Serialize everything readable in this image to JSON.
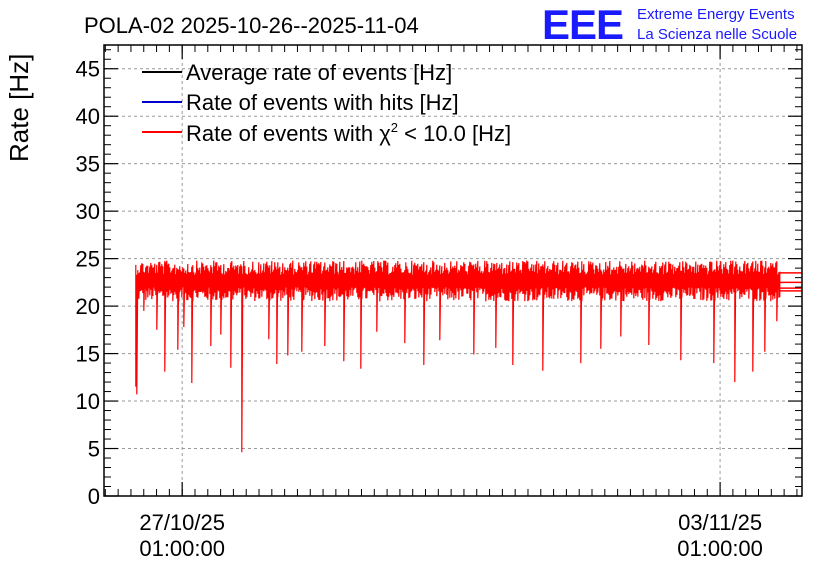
{
  "header": {
    "title": "POLA-02 2025-10-26--2025-11-04",
    "logo_text": "EEE",
    "logo_line1": "Extreme Energy Events",
    "logo_line2": "La Scienza nelle Scuole"
  },
  "chart_data": {
    "type": "line",
    "title": "POLA-02 2025-10-26--2025-11-04",
    "ylabel": "Rate [Hz]",
    "xlabel": "",
    "ylim": [
      0,
      47.5
    ],
    "y_ticks": [
      0,
      5,
      10,
      15,
      20,
      25,
      30,
      35,
      40,
      45
    ],
    "x_ticks": [
      {
        "date": "27/10/25",
        "time": "01:00:00"
      },
      {
        "date": "03/11/25",
        "time": "01:00:00"
      }
    ],
    "x_range_days": [
      "2025-10-26T00:35",
      "2025-11-04T02:35"
    ],
    "grid": true,
    "legend_position": "top-left",
    "legend": [
      {
        "label": "Average rate of events [Hz]",
        "color": "#000000"
      },
      {
        "label": "Rate of events with hits [Hz]",
        "color": "#0000cc"
      },
      {
        "label_prefix": "Rate of events with ",
        "label_symbol": "χ",
        "label_sup": "2",
        "label_suffix": " < 10.0 [Hz]",
        "color": "#ff0000"
      }
    ],
    "series": [
      {
        "name": "Average rate of events [Hz]",
        "color": "#000000",
        "typical": 22.8,
        "band": [
          20.5,
          24.8
        ]
      },
      {
        "name": "Rate of events with hits [Hz]",
        "color": "#0000cc",
        "typical": 22.8,
        "band": [
          20.5,
          24.8
        ]
      },
      {
        "name": "Rate of events with χ2 < 10.0 [Hz]",
        "color": "#ff0000",
        "typical": 22.8,
        "band": [
          20.5,
          24.8
        ],
        "start": "2025-10-26T10:30",
        "end": "2025-11-03T19:40",
        "dips": [
          {
            "t": "2025-10-26T10:35",
            "v": 11.5
          },
          {
            "t": "2025-10-26T10:50",
            "v": 10.7
          },
          {
            "t": "2025-10-26T13:00",
            "v": 19.5
          },
          {
            "t": "2025-10-26T17:10",
            "v": 17.5
          },
          {
            "t": "2025-10-26T19:40",
            "v": 13.1
          },
          {
            "t": "2025-10-26T23:40",
            "v": 15.4
          },
          {
            "t": "2025-10-27T01:40",
            "v": 17.8
          },
          {
            "t": "2025-10-27T04:10",
            "v": 11.9
          },
          {
            "t": "2025-10-27T10:00",
            "v": 15.8
          },
          {
            "t": "2025-10-27T13:00",
            "v": 17.0
          },
          {
            "t": "2025-10-27T16:10",
            "v": 13.5
          },
          {
            "t": "2025-10-27T19:50",
            "v": 4.6
          },
          {
            "t": "2025-10-28T04:10",
            "v": 16.5
          },
          {
            "t": "2025-10-28T06:40",
            "v": 13.9
          },
          {
            "t": "2025-10-28T10:00",
            "v": 14.8
          },
          {
            "t": "2025-10-28T14:30",
            "v": 15.2
          },
          {
            "t": "2025-10-28T21:40",
            "v": 15.8
          },
          {
            "t": "2025-10-29T03:40",
            "v": 14.2
          },
          {
            "t": "2025-10-29T09:00",
            "v": 13.4
          },
          {
            "t": "2025-10-29T14:00",
            "v": 17.3
          },
          {
            "t": "2025-10-29T22:30",
            "v": 16.1
          },
          {
            "t": "2025-10-30T04:40",
            "v": 13.8
          },
          {
            "t": "2025-10-30T09:40",
            "v": 16.4
          },
          {
            "t": "2025-10-30T20:10",
            "v": 14.9
          },
          {
            "t": "2025-10-31T03:10",
            "v": 15.6
          },
          {
            "t": "2025-10-31T08:10",
            "v": 13.8
          },
          {
            "t": "2025-10-31T17:40",
            "v": 13.2
          },
          {
            "t": "2025-11-01T05:40",
            "v": 14.0
          },
          {
            "t": "2025-11-01T11:40",
            "v": 15.5
          },
          {
            "t": "2025-11-01T18:10",
            "v": 16.8
          },
          {
            "t": "2025-11-02T02:40",
            "v": 15.9
          },
          {
            "t": "2025-11-02T12:40",
            "v": 14.3
          },
          {
            "t": "2025-11-02T23:10",
            "v": 14.0
          },
          {
            "t": "2025-11-03T05:40",
            "v": 12.0
          },
          {
            "t": "2025-11-03T11:10",
            "v": 13.1
          },
          {
            "t": "2025-11-03T15:10",
            "v": 15.2
          },
          {
            "t": "2025-11-03T18:40",
            "v": 18.4
          }
        ],
        "tail_lines": [
          23.5,
          22.5,
          21.9,
          21.6
        ]
      }
    ]
  }
}
